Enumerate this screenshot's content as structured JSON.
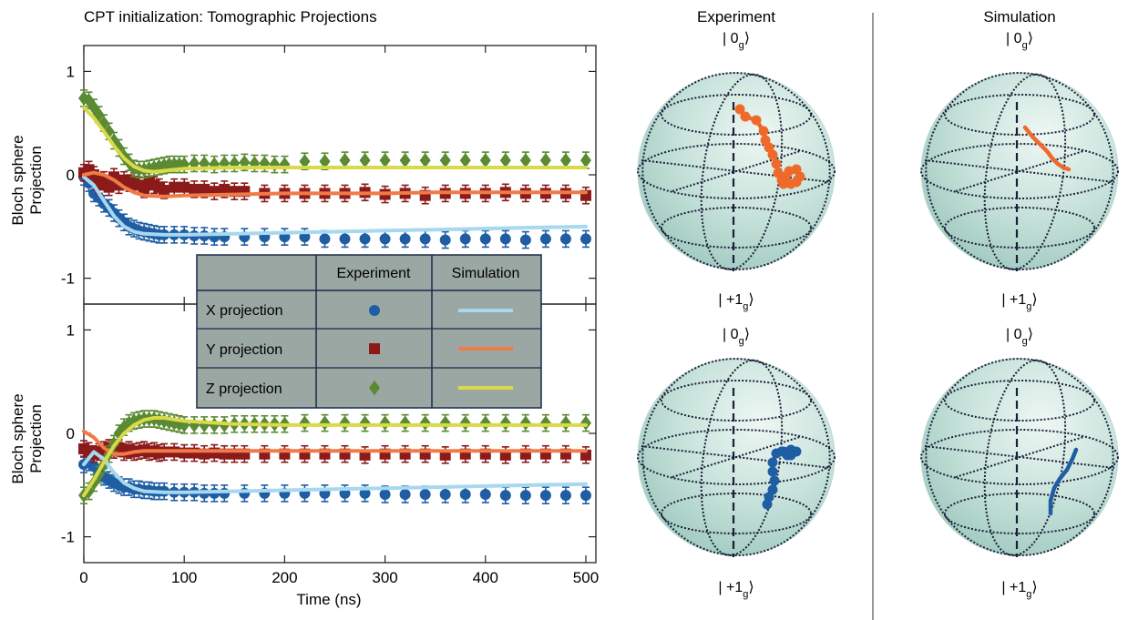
{
  "chart_data": [
    {
      "type": "scatter",
      "title": "CPT initialization: Tomographic Projections",
      "xlabel": "Time (ns)",
      "ylabel": "Bloch sphere Projection",
      "xlim": [
        0,
        510
      ],
      "ylim": [
        -1.25,
        1.25
      ],
      "x_ticks": [
        "0",
        "100",
        "200",
        "300",
        "400",
        "500"
      ],
      "y_ticks": [
        "1",
        "0",
        "-1"
      ],
      "grid": false,
      "series": [
        {
          "name": "X projection",
          "kind": "experiment",
          "marker": "circle",
          "color": "#1f5ea3",
          "x": [
            0,
            5,
            10,
            15,
            20,
            25,
            30,
            35,
            40,
            45,
            50,
            55,
            60,
            65,
            70,
            75,
            80,
            90,
            100,
            110,
            120,
            130,
            140,
            160,
            180,
            200,
            220,
            240,
            260,
            280,
            300,
            320,
            340,
            360,
            380,
            400,
            420,
            440,
            460,
            480,
            500
          ],
          "y": [
            -0.02,
            -0.08,
            -0.18,
            -0.22,
            -0.28,
            -0.32,
            -0.37,
            -0.42,
            -0.46,
            -0.5,
            -0.52,
            -0.54,
            -0.55,
            -0.56,
            -0.57,
            -0.58,
            -0.58,
            -0.58,
            -0.58,
            -0.59,
            -0.59,
            -0.6,
            -0.6,
            -0.6,
            -0.6,
            -0.6,
            -0.6,
            -0.62,
            -0.62,
            -0.62,
            -0.62,
            -0.62,
            -0.62,
            -0.63,
            -0.62,
            -0.62,
            -0.62,
            -0.63,
            -0.62,
            -0.62,
            -0.62
          ]
        },
        {
          "name": "Y projection",
          "kind": "experiment",
          "marker": "square",
          "color": "#8b1a1a",
          "x": [
            0,
            5,
            10,
            15,
            20,
            25,
            30,
            35,
            40,
            45,
            50,
            55,
            60,
            65,
            70,
            75,
            80,
            90,
            100,
            110,
            120,
            130,
            140,
            150,
            160,
            180,
            200,
            220,
            240,
            260,
            280,
            300,
            320,
            340,
            360,
            380,
            400,
            420,
            440,
            460,
            480,
            500
          ],
          "y": [
            0.02,
            0.05,
            0.0,
            -0.1,
            -0.05,
            -0.12,
            -0.02,
            -0.1,
            -0.05,
            -0.08,
            -0.06,
            -0.1,
            -0.14,
            -0.06,
            -0.1,
            -0.12,
            -0.15,
            -0.12,
            -0.12,
            -0.14,
            -0.14,
            -0.16,
            -0.14,
            -0.16,
            -0.16,
            -0.18,
            -0.18,
            -0.18,
            -0.18,
            -0.18,
            -0.17,
            -0.19,
            -0.18,
            -0.2,
            -0.18,
            -0.18,
            -0.18,
            -0.17,
            -0.18,
            -0.18,
            -0.18,
            -0.2
          ]
        },
        {
          "name": "Z projection",
          "kind": "experiment",
          "marker": "diamond",
          "color": "#5a8a32",
          "x": [
            0,
            5,
            10,
            15,
            20,
            25,
            30,
            35,
            40,
            45,
            50,
            55,
            60,
            65,
            70,
            75,
            80,
            85,
            90,
            95,
            100,
            110,
            120,
            130,
            140,
            150,
            160,
            170,
            180,
            190,
            200,
            220,
            240,
            260,
            280,
            300,
            320,
            340,
            360,
            380,
            400,
            420,
            440,
            460,
            480,
            500
          ],
          "y": [
            0.74,
            0.72,
            0.65,
            0.58,
            0.5,
            0.42,
            0.33,
            0.26,
            0.18,
            0.12,
            0.06,
            0.05,
            0.05,
            0.06,
            0.07,
            0.08,
            0.09,
            0.1,
            0.1,
            0.1,
            0.1,
            0.11,
            0.11,
            0.1,
            0.11,
            0.11,
            0.12,
            0.11,
            0.11,
            0.1,
            0.1,
            0.13,
            0.13,
            0.14,
            0.14,
            0.14,
            0.14,
            0.14,
            0.14,
            0.14,
            0.14,
            0.14,
            0.14,
            0.14,
            0.14,
            0.14
          ]
        },
        {
          "name": "X projection",
          "kind": "simulation",
          "color": "#a6d8f0",
          "x": [
            0,
            10,
            20,
            30,
            40,
            50,
            60,
            80,
            100,
            150,
            200,
            250,
            300,
            350,
            400,
            450,
            500
          ],
          "y": [
            -0.02,
            -0.1,
            -0.25,
            -0.4,
            -0.5,
            -0.55,
            -0.57,
            -0.58,
            -0.58,
            -0.57,
            -0.56,
            -0.55,
            -0.54,
            -0.53,
            -0.52,
            -0.51,
            -0.5
          ]
        },
        {
          "name": "Y projection",
          "kind": "simulation",
          "color": "#f07a48",
          "x": [
            0,
            10,
            20,
            30,
            40,
            50,
            60,
            80,
            100,
            150,
            200,
            250,
            300,
            350,
            400,
            450,
            500
          ],
          "y": [
            0.0,
            0.02,
            0.0,
            -0.05,
            -0.12,
            -0.17,
            -0.2,
            -0.21,
            -0.2,
            -0.19,
            -0.18,
            -0.18,
            -0.18,
            -0.17,
            -0.17,
            -0.17,
            -0.17
          ]
        },
        {
          "name": "Z projection",
          "kind": "simulation",
          "color": "#d9d94a",
          "x": [
            0,
            10,
            20,
            30,
            40,
            50,
            60,
            70,
            80,
            100,
            150,
            200,
            250,
            300,
            350,
            400,
            450,
            500
          ],
          "y": [
            0.65,
            0.55,
            0.42,
            0.28,
            0.16,
            0.08,
            0.04,
            0.03,
            0.04,
            0.06,
            0.07,
            0.07,
            0.07,
            0.07,
            0.07,
            0.07,
            0.07,
            0.07
          ]
        }
      ]
    },
    {
      "type": "scatter",
      "title": "",
      "xlabel": "Time (ns)",
      "ylabel": "Bloch sphere Projection",
      "xlim": [
        0,
        510
      ],
      "ylim": [
        -1.25,
        1.25
      ],
      "x_ticks": [
        "0",
        "100",
        "200",
        "300",
        "400",
        "500"
      ],
      "y_ticks": [
        "1",
        "0",
        "-1"
      ],
      "grid": false,
      "series": [
        {
          "name": "X projection",
          "kind": "experiment",
          "marker": "circle",
          "color": "#1f5ea3",
          "x": [
            0,
            5,
            10,
            15,
            20,
            25,
            30,
            35,
            40,
            45,
            50,
            55,
            60,
            65,
            70,
            75,
            80,
            90,
            100,
            110,
            120,
            130,
            140,
            160,
            180,
            200,
            220,
            240,
            260,
            280,
            300,
            320,
            340,
            360,
            380,
            400,
            420,
            440,
            460,
            480,
            500
          ],
          "y": [
            -0.3,
            -0.28,
            -0.32,
            -0.38,
            -0.42,
            -0.45,
            -0.48,
            -0.5,
            -0.52,
            -0.52,
            -0.54,
            -0.54,
            -0.55,
            -0.55,
            -0.56,
            -0.56,
            -0.56,
            -0.57,
            -0.57,
            -0.57,
            -0.58,
            -0.58,
            -0.58,
            -0.58,
            -0.58,
            -0.58,
            -0.58,
            -0.58,
            -0.58,
            -0.58,
            -0.59,
            -0.59,
            -0.59,
            -0.59,
            -0.59,
            -0.59,
            -0.6,
            -0.6,
            -0.6,
            -0.6,
            -0.6
          ]
        },
        {
          "name": "Y projection",
          "kind": "experiment",
          "marker": "square",
          "color": "#8b1a1a",
          "x": [
            0,
            5,
            10,
            15,
            20,
            25,
            30,
            35,
            40,
            45,
            50,
            55,
            60,
            65,
            70,
            75,
            80,
            90,
            100,
            110,
            120,
            130,
            140,
            150,
            160,
            180,
            200,
            220,
            240,
            260,
            280,
            300,
            320,
            340,
            360,
            380,
            400,
            420,
            440,
            460,
            480,
            500
          ],
          "y": [
            -0.15,
            -0.17,
            -0.2,
            -0.18,
            -0.16,
            -0.14,
            -0.16,
            -0.14,
            -0.18,
            -0.16,
            -0.18,
            -0.17,
            -0.16,
            -0.18,
            -0.17,
            -0.19,
            -0.18,
            -0.18,
            -0.19,
            -0.19,
            -0.2,
            -0.19,
            -0.2,
            -0.2,
            -0.2,
            -0.2,
            -0.2,
            -0.2,
            -0.2,
            -0.2,
            -0.21,
            -0.2,
            -0.2,
            -0.2,
            -0.21,
            -0.2,
            -0.2,
            -0.21,
            -0.2,
            -0.2,
            -0.2,
            -0.21
          ]
        },
        {
          "name": "Z projection",
          "kind": "experiment",
          "marker": "diamond",
          "color": "#5a8a32",
          "x": [
            0,
            5,
            10,
            15,
            20,
            25,
            30,
            35,
            40,
            45,
            50,
            55,
            60,
            65,
            70,
            75,
            80,
            85,
            90,
            95,
            100,
            110,
            120,
            130,
            140,
            150,
            160,
            170,
            180,
            190,
            200,
            220,
            240,
            260,
            280,
            300,
            320,
            340,
            360,
            380,
            400,
            420,
            440,
            460,
            480,
            500
          ],
          "y": [
            -0.6,
            -0.56,
            -0.48,
            -0.4,
            -0.3,
            -0.2,
            -0.1,
            0.0,
            0.06,
            0.1,
            0.12,
            0.13,
            0.14,
            0.14,
            0.14,
            0.13,
            0.12,
            0.11,
            0.1,
            0.09,
            0.08,
            0.08,
            0.08,
            0.08,
            0.08,
            0.09,
            0.09,
            0.09,
            0.09,
            0.09,
            0.09,
            0.1,
            0.1,
            0.1,
            0.1,
            0.1,
            0.1,
            0.1,
            0.1,
            0.1,
            0.1,
            0.1,
            0.1,
            0.1,
            0.1,
            0.1
          ]
        },
        {
          "name": "X projection",
          "kind": "simulation",
          "color": "#a6d8f0",
          "x": [
            0,
            10,
            20,
            30,
            40,
            50,
            60,
            80,
            100,
            150,
            200,
            250,
            300,
            350,
            400,
            450,
            500
          ],
          "y": [
            -0.3,
            -0.18,
            -0.25,
            -0.38,
            -0.48,
            -0.53,
            -0.56,
            -0.57,
            -0.57,
            -0.56,
            -0.55,
            -0.54,
            -0.53,
            -0.52,
            -0.51,
            -0.5,
            -0.49
          ]
        },
        {
          "name": "Y projection",
          "kind": "simulation",
          "color": "#f07a48",
          "x": [
            0,
            10,
            20,
            30,
            40,
            50,
            60,
            80,
            100,
            150,
            200,
            250,
            300,
            350,
            400,
            450,
            500
          ],
          "y": [
            0.02,
            -0.04,
            -0.14,
            -0.2,
            -0.2,
            -0.18,
            -0.17,
            -0.17,
            -0.17,
            -0.17,
            -0.17,
            -0.17,
            -0.17,
            -0.17,
            -0.17,
            -0.17,
            -0.17
          ]
        },
        {
          "name": "Z projection",
          "kind": "simulation",
          "color": "#d9d94a",
          "x": [
            0,
            10,
            20,
            30,
            40,
            50,
            60,
            70,
            80,
            100,
            150,
            200,
            250,
            300,
            350,
            400,
            450,
            500
          ],
          "y": [
            -0.6,
            -0.45,
            -0.28,
            -0.12,
            0.0,
            0.08,
            0.13,
            0.15,
            0.15,
            0.12,
            0.09,
            0.08,
            0.08,
            0.08,
            0.08,
            0.08,
            0.08,
            0.08
          ]
        }
      ]
    }
  ],
  "legend": {
    "header_experiment": "Experiment",
    "header_simulation": "Simulation",
    "rows": [
      {
        "label": "X projection",
        "marker": "circle",
        "marker_color": "#1f5ea3",
        "line_color": "#a6d8f0"
      },
      {
        "label": "Y projection",
        "marker": "square",
        "marker_color": "#8b1a1a",
        "line_color": "#f07a48"
      },
      {
        "label": "Z projection",
        "marker": "diamond",
        "marker_color": "#5a8a32",
        "line_color": "#d9d94a"
      }
    ]
  },
  "bloch": {
    "col_experiment": "Experiment",
    "col_simulation": "Simulation",
    "ket_top": "|0g⟩",
    "ket_bottom": "|+1g⟩",
    "ket_parts": {
      "bar": "|",
      "zero": "0",
      "plus_one": "+1",
      "sub": "g",
      "close": "⟩"
    },
    "sphere_color": "#c6e2da",
    "trajectory_top_color": "#ef6a2a",
    "trajectory_bottom_color": "#1f5ea3"
  }
}
